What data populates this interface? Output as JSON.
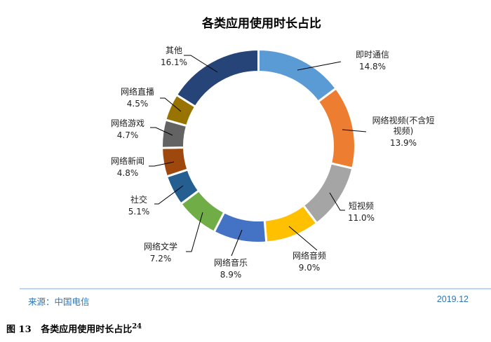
{
  "chart_data": {
    "type": "pie",
    "subtype": "donut",
    "title": "各类应用使用时长占比",
    "categories": [
      "即时通信",
      "网络视频(不含短视频)",
      "短视频",
      "网络音频",
      "网络音乐",
      "网络文学",
      "社交",
      "网络新闻",
      "网络游戏",
      "网络直播",
      "其他"
    ],
    "values": [
      14.8,
      13.9,
      11.0,
      9.0,
      8.9,
      7.2,
      5.1,
      4.8,
      4.7,
      4.5,
      16.1
    ],
    "value_labels": [
      "14.8%",
      "13.9%",
      "11.0%",
      "9.0%",
      "8.9%",
      "7.2%",
      "5.1%",
      "4.8%",
      "4.7%",
      "4.5%",
      "16.1%"
    ],
    "label_lines": [
      [
        "即时通信"
      ],
      [
        "网络视频(不含短",
        "视频)"
      ],
      [
        "短视频"
      ],
      [
        "网络音频"
      ],
      [
        "网络音乐"
      ],
      [
        "网络文学"
      ],
      [
        "社交"
      ],
      [
        "网络新闻"
      ],
      [
        "网络游戏"
      ],
      [
        "网络直播"
      ],
      [
        "其他"
      ]
    ],
    "colors": [
      "#5b9bd5",
      "#ed7d31",
      "#a5a5a5",
      "#ffc000",
      "#4472c4",
      "#70ad47",
      "#255e91",
      "#9e480e",
      "#636363",
      "#997300",
      "#264478"
    ],
    "unit": "%",
    "direction": "clockwise from top",
    "legend": "none (leader-line labels)"
  },
  "source": "来源：中国电信",
  "date": "2019.12",
  "caption": {
    "prefix": "图 13",
    "text": "各类应用使用时长占比",
    "footnote": "24"
  }
}
